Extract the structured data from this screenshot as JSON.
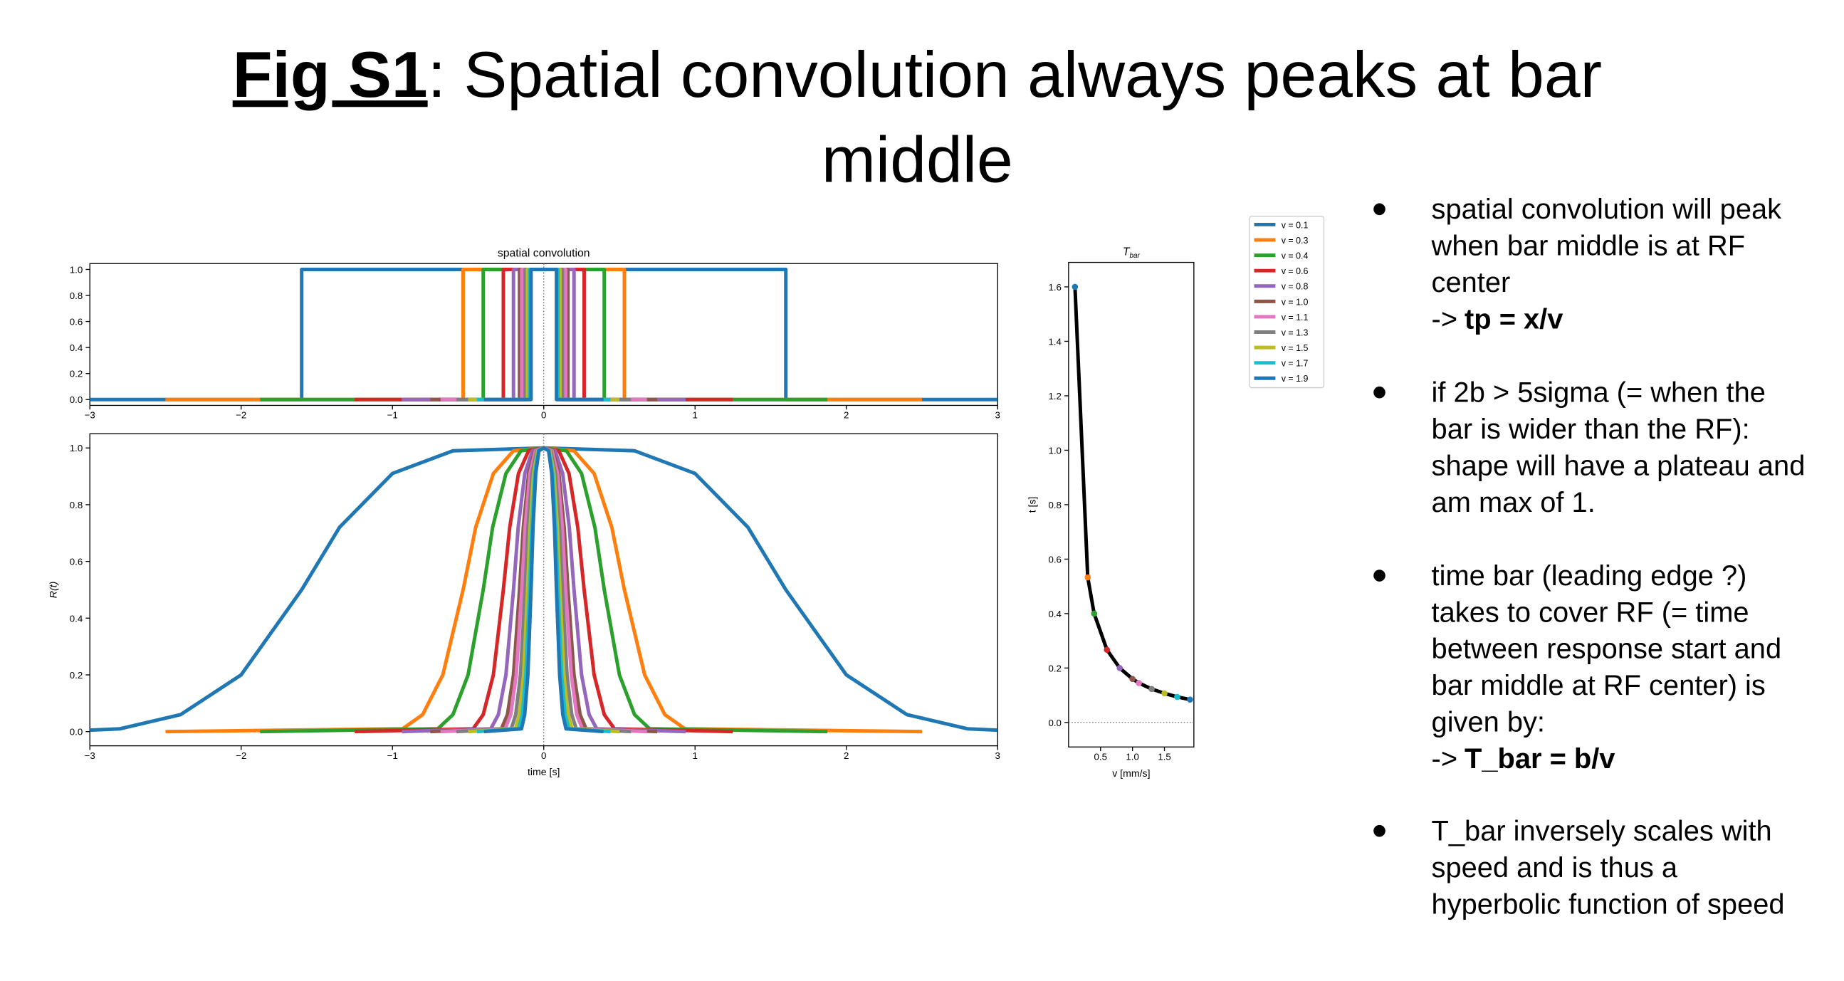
{
  "title": {
    "label": "Fig S1",
    "lines": [
      ": Spatial convolution always peaks at bar",
      "middle"
    ]
  },
  "bullets": [
    {
      "lines": [
        "spatial convolution will peak",
        "when bar middle is at RF",
        "center"
      ],
      "arrow": "->",
      "result": "tp = x/v"
    },
    {
      "lines": [
        "if 2b > 5sigma (= when the",
        "bar is wider than the RF):",
        "shape will have a plateau and",
        "am max of 1."
      ]
    },
    {
      "lines": [
        "time bar (leading edge ?)",
        "takes to cover RF (= time",
        "between response start and",
        "bar middle at RF center) is",
        "given by:"
      ],
      "arrow": "->",
      "result": "T_bar = b/v"
    },
    {
      "lines": [
        "T_bar inversely scales with",
        "speed and is thus a",
        "hyperbolic function of speed"
      ]
    }
  ],
  "chart_data": [
    {
      "type": "line",
      "title": "spatial convolution",
      "xlim": [
        -3,
        3
      ],
      "ylim": [
        -0.045,
        1.045
      ],
      "xticks": [
        {
          "value": -3,
          "label": "−3"
        },
        {
          "value": -2,
          "label": "−2"
        },
        {
          "value": -1,
          "label": "−1"
        },
        0,
        1,
        2,
        3
      ],
      "yticks": [
        {
          "value": 0,
          "label": "0.0"
        },
        0.2,
        0.4,
        0.6,
        0.8,
        {
          "value": 1,
          "label": "1.0"
        }
      ],
      "vline": 0,
      "series": [
        {
          "name": "v = 0.1",
          "color": "#1f77b4",
          "x": [
            -3,
            -1.6,
            -1.6,
            1.6,
            1.6,
            3
          ],
          "values": [
            0,
            0,
            1,
            1,
            0,
            0
          ]
        },
        {
          "name": "v = 0.3",
          "color": "#ff7f0e",
          "x": [
            -2.5,
            -0.533,
            -0.533,
            0.533,
            0.533,
            2.5
          ],
          "values": [
            0,
            0,
            1,
            1,
            0,
            0
          ]
        },
        {
          "name": "v = 0.4",
          "color": "#2ca02c",
          "x": [
            -1.875,
            -0.4,
            -0.4,
            0.4,
            0.4,
            1.875
          ],
          "values": [
            0,
            0,
            1,
            1,
            0,
            0
          ]
        },
        {
          "name": "v = 0.6",
          "color": "#d62728",
          "x": [
            -1.25,
            -0.267,
            -0.267,
            0.267,
            0.267,
            1.25
          ],
          "values": [
            0,
            0,
            1,
            1,
            0,
            0
          ]
        },
        {
          "name": "v = 0.8",
          "color": "#9467bd",
          "x": [
            -0.938,
            -0.2,
            -0.2,
            0.2,
            0.2,
            0.938
          ],
          "values": [
            0,
            0,
            1,
            1,
            0,
            0
          ]
        },
        {
          "name": "v = 1.0",
          "color": "#8c564b",
          "x": [
            -0.75,
            -0.16,
            -0.16,
            0.16,
            0.16,
            0.75
          ],
          "values": [
            0,
            0,
            1,
            1,
            0,
            0
          ]
        },
        {
          "name": "v = 1.1",
          "color": "#e377c2",
          "x": [
            -0.682,
            -0.145,
            -0.145,
            0.145,
            0.145,
            0.682
          ],
          "values": [
            0,
            0,
            1,
            1,
            0,
            0
          ]
        },
        {
          "name": "v = 1.3",
          "color": "#7f7f7f",
          "x": [
            -0.577,
            -0.123,
            -0.123,
            0.123,
            0.123,
            0.577
          ],
          "values": [
            0,
            0,
            1,
            1,
            0,
            0
          ]
        },
        {
          "name": "v = 1.5",
          "color": "#bcbd22",
          "x": [
            -0.5,
            -0.107,
            -0.107,
            0.107,
            0.107,
            0.5
          ],
          "values": [
            0,
            0,
            1,
            1,
            0,
            0
          ]
        },
        {
          "name": "v = 1.7",
          "color": "#17becf",
          "x": [
            -0.441,
            -0.094,
            -0.094,
            0.094,
            0.094,
            0.441
          ],
          "values": [
            0,
            0,
            1,
            1,
            0,
            0
          ]
        },
        {
          "name": "v = 1.9",
          "color": "#1f77b4",
          "x": [
            -0.395,
            -0.084,
            -0.084,
            0.084,
            0.084,
            0.395
          ],
          "values": [
            0,
            0,
            1,
            1,
            0,
            0
          ]
        }
      ]
    },
    {
      "type": "line",
      "x_label": "time [s]",
      "y_label": "R(t)",
      "xlim": [
        -3,
        3
      ],
      "ylim": [
        -0.05,
        1.05
      ],
      "xticks": [
        {
          "value": -3,
          "label": "−3"
        },
        {
          "value": -2,
          "label": "−2"
        },
        {
          "value": -1,
          "label": "−1"
        },
        0,
        1,
        2,
        3
      ],
      "yticks": [
        {
          "value": 0,
          "label": "0.0"
        },
        0.2,
        0.4,
        0.6,
        0.8,
        {
          "value": 1,
          "label": "1.0"
        }
      ],
      "vline": 0,
      "series": [
        {
          "color": "#1f77b4",
          "x": [
            -3,
            -2.8,
            -2.4,
            -2,
            -1.6,
            -1.35,
            -1,
            -0.6,
            0,
            0.6,
            1,
            1.35,
            1.6,
            2,
            2.4,
            2.8,
            3
          ],
          "values": [
            0.005,
            0.01,
            0.06,
            0.2,
            0.5,
            0.72,
            0.91,
            0.99,
            1,
            0.99,
            0.91,
            0.72,
            0.5,
            0.2,
            0.06,
            0.01,
            0.005
          ]
        },
        {
          "color": "#ff7f0e",
          "x": [
            -2.5,
            -0.933,
            -0.8,
            -0.667,
            -0.533,
            -0.45,
            -0.333,
            -0.2,
            0,
            0.2,
            0.333,
            0.45,
            0.533,
            0.667,
            0.8,
            0.933,
            2.5
          ],
          "values": [
            0,
            0.01,
            0.06,
            0.2,
            0.5,
            0.72,
            0.91,
            0.99,
            1,
            0.99,
            0.91,
            0.72,
            0.5,
            0.2,
            0.06,
            0.01,
            0
          ]
        },
        {
          "color": "#2ca02c",
          "x": [
            -1.875,
            -0.7,
            -0.6,
            -0.5,
            -0.4,
            -0.338,
            -0.25,
            -0.15,
            0,
            0.15,
            0.25,
            0.338,
            0.4,
            0.5,
            0.6,
            0.7,
            1.875
          ],
          "values": [
            0,
            0.01,
            0.06,
            0.2,
            0.5,
            0.72,
            0.91,
            0.99,
            1,
            0.99,
            0.91,
            0.72,
            0.5,
            0.2,
            0.06,
            0.01,
            0
          ]
        },
        {
          "color": "#d62728",
          "x": [
            -1.25,
            -0.467,
            -0.4,
            -0.333,
            -0.267,
            -0.225,
            -0.167,
            -0.1,
            0,
            0.1,
            0.167,
            0.225,
            0.267,
            0.333,
            0.4,
            0.467,
            1.25
          ],
          "values": [
            0,
            0.01,
            0.06,
            0.2,
            0.5,
            0.72,
            0.91,
            0.99,
            1,
            0.99,
            0.91,
            0.72,
            0.5,
            0.2,
            0.06,
            0.01,
            0
          ]
        },
        {
          "color": "#9467bd",
          "x": [
            -0.938,
            -0.35,
            -0.3,
            -0.25,
            -0.2,
            -0.169,
            -0.125,
            -0.075,
            0,
            0.075,
            0.125,
            0.169,
            0.2,
            0.25,
            0.3,
            0.35,
            0.938
          ],
          "values": [
            0,
            0.01,
            0.06,
            0.2,
            0.5,
            0.72,
            0.91,
            0.99,
            1,
            0.99,
            0.91,
            0.72,
            0.5,
            0.2,
            0.06,
            0.01,
            0
          ]
        },
        {
          "color": "#8c564b",
          "x": [
            -0.75,
            -0.28,
            -0.24,
            -0.2,
            -0.16,
            -0.135,
            -0.1,
            -0.06,
            0,
            0.06,
            0.1,
            0.135,
            0.16,
            0.2,
            0.24,
            0.28,
            0.75
          ],
          "values": [
            0,
            0.01,
            0.06,
            0.2,
            0.5,
            0.72,
            0.91,
            0.99,
            1,
            0.99,
            0.91,
            0.72,
            0.5,
            0.2,
            0.06,
            0.01,
            0
          ]
        },
        {
          "color": "#e377c2",
          "x": [
            -0.682,
            -0.255,
            -0.218,
            -0.182,
            -0.145,
            -0.123,
            -0.091,
            -0.055,
            0,
            0.055,
            0.091,
            0.123,
            0.145,
            0.182,
            0.218,
            0.255,
            0.682
          ],
          "values": [
            0,
            0.01,
            0.06,
            0.2,
            0.5,
            0.72,
            0.91,
            0.99,
            1,
            0.99,
            0.91,
            0.72,
            0.5,
            0.2,
            0.06,
            0.01,
            0
          ]
        },
        {
          "color": "#7f7f7f",
          "x": [
            -0.577,
            -0.215,
            -0.185,
            -0.154,
            -0.123,
            -0.104,
            -0.077,
            -0.046,
            0,
            0.046,
            0.077,
            0.104,
            0.123,
            0.154,
            0.185,
            0.215,
            0.577
          ],
          "values": [
            0,
            0.01,
            0.06,
            0.2,
            0.5,
            0.72,
            0.91,
            0.99,
            1,
            0.99,
            0.91,
            0.72,
            0.5,
            0.2,
            0.06,
            0.01,
            0
          ]
        },
        {
          "color": "#bcbd22",
          "x": [
            -0.5,
            -0.187,
            -0.16,
            -0.133,
            -0.107,
            -0.09,
            -0.067,
            -0.04,
            0,
            0.04,
            0.067,
            0.09,
            0.107,
            0.133,
            0.16,
            0.187,
            0.5
          ],
          "values": [
            0,
            0.01,
            0.06,
            0.2,
            0.5,
            0.72,
            0.91,
            0.99,
            1,
            0.99,
            0.91,
            0.72,
            0.5,
            0.2,
            0.06,
            0.01,
            0
          ]
        },
        {
          "color": "#17becf",
          "x": [
            -0.441,
            -0.165,
            -0.141,
            -0.118,
            -0.094,
            -0.079,
            -0.059,
            -0.035,
            0,
            0.035,
            0.059,
            0.079,
            0.094,
            0.118,
            0.141,
            0.165,
            0.441
          ],
          "values": [
            0,
            0.01,
            0.06,
            0.2,
            0.5,
            0.72,
            0.91,
            0.99,
            1,
            0.99,
            0.91,
            0.72,
            0.5,
            0.2,
            0.06,
            0.01,
            0
          ]
        },
        {
          "color": "#1f77b4",
          "x": [
            -0.395,
            -0.147,
            -0.126,
            -0.105,
            -0.084,
            -0.071,
            -0.053,
            -0.032,
            0,
            0.032,
            0.053,
            0.071,
            0.084,
            0.105,
            0.126,
            0.147,
            0.395
          ],
          "values": [
            0,
            0.01,
            0.06,
            0.2,
            0.5,
            0.72,
            0.91,
            0.99,
            1,
            0.99,
            0.91,
            0.72,
            0.5,
            0.2,
            0.06,
            0.01,
            0
          ]
        }
      ]
    },
    {
      "type": "line",
      "title": "T",
      "title_subscript": "bar",
      "x_label": "v [mm/s]",
      "y_label": "t [s]",
      "xlim": [
        0.0,
        1.96
      ],
      "ylim": [
        -0.09,
        1.69
      ],
      "xticks": [
        0.5,
        {
          "value": 1,
          "label": "1.0"
        },
        1.5
      ],
      "yticks": [
        {
          "value": 0,
          "label": "0.0"
        },
        0.2,
        0.4,
        0.6,
        0.8,
        {
          "value": 1,
          "label": "1.0"
        },
        1.2,
        1.4,
        1.6
      ],
      "hline": 0,
      "series": [
        {
          "color": "#000000",
          "marker_colors": [
            "#1f77b4",
            "#ff7f0e",
            "#2ca02c",
            "#d62728",
            "#9467bd",
            "#8c564b",
            "#e377c2",
            "#7f7f7f",
            "#bcbd22",
            "#17becf",
            "#1f77b4"
          ],
          "x": [
            0.1,
            0.3,
            0.4,
            0.6,
            0.8,
            1.0,
            1.1,
            1.3,
            1.5,
            1.7,
            1.9
          ],
          "values": [
            1.6,
            0.533,
            0.4,
            0.267,
            0.2,
            0.16,
            0.145,
            0.123,
            0.107,
            0.094,
            0.084
          ]
        }
      ]
    }
  ]
}
